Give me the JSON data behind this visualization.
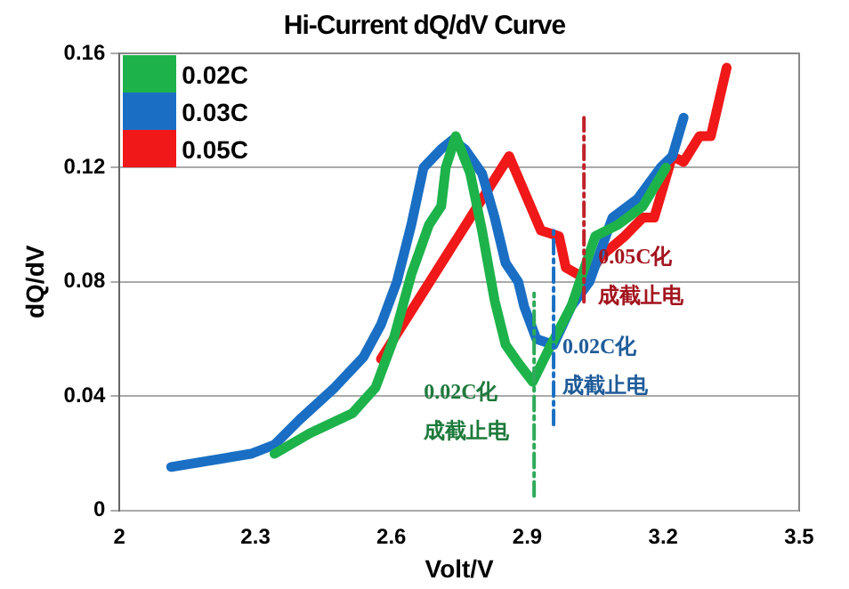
{
  "chart_data": {
    "type": "line",
    "title": "Hi-Current dQ/dV Curve",
    "xlabel": "Volt/V",
    "ylabel": "dQ/dV",
    "xlim": [
      2,
      3.5
    ],
    "xticks": [
      2,
      2.3,
      2.6,
      2.9,
      3.2,
      3.5
    ],
    "ylim": [
      0,
      0.16
    ],
    "yticks": [
      0,
      0.04,
      0.08,
      0.12,
      0.16
    ],
    "grid": "y",
    "legend": "top left",
    "marker": "none",
    "series": [
      {
        "name": "0.02C",
        "color": "#1db34a",
        "x": [
          2.342,
          2.42,
          2.514,
          2.565,
          2.605,
          2.644,
          2.683,
          2.71,
          2.72,
          2.742,
          2.774,
          2.8,
          2.828,
          2.852,
          2.88,
          2.912,
          2.946,
          2.997,
          3.05,
          3.1,
          3.155,
          3.206
        ],
        "values": [
          0.0198,
          0.027,
          0.034,
          0.043,
          0.06,
          0.0826,
          0.1,
          0.1065,
          0.12,
          0.131,
          0.118,
          0.098,
          0.0734,
          0.058,
          0.0516,
          0.045,
          0.056,
          0.0714,
          0.096,
          0.1,
          0.1065,
          0.12
        ]
      },
      {
        "name": "0.03C",
        "color": "#1a6fc4",
        "x": [
          2.114,
          2.29,
          2.342,
          2.397,
          2.475,
          2.538,
          2.577,
          2.612,
          2.644,
          2.671,
          2.71,
          2.735,
          2.762,
          2.8,
          2.828,
          2.852,
          2.88,
          2.893,
          2.92,
          2.958,
          2.997,
          3.037,
          3.088,
          3.143,
          3.194,
          3.22,
          3.245
        ],
        "values": [
          0.0152,
          0.0198,
          0.023,
          0.0317,
          0.043,
          0.0536,
          0.065,
          0.08,
          0.1,
          0.12,
          0.1265,
          0.1297,
          0.1265,
          0.118,
          0.1025,
          0.0866,
          0.08,
          0.0714,
          0.06,
          0.058,
          0.0714,
          0.08,
          0.1025,
          0.109,
          0.12,
          0.124,
          0.1375
        ]
      },
      {
        "name": "0.05C",
        "color": "#f01818",
        "x": [
          2.577,
          2.86,
          2.93,
          2.97,
          2.985,
          3.03,
          3.063,
          3.115,
          3.155,
          3.18,
          3.22,
          3.245,
          3.28,
          3.305,
          3.34
        ],
        "values": [
          0.053,
          0.124,
          0.098,
          0.096,
          0.085,
          0.081,
          0.089,
          0.096,
          0.1025,
          0.1025,
          0.124,
          0.122,
          0.131,
          0.131,
          0.155
        ]
      },
      {
        "color": "#2eaa5a",
        "line_style": "dashed",
        "x": [
          2.915,
          2.915
        ],
        "values": [
          0.005,
          0.076
        ]
      },
      {
        "color": "#1a6fc4",
        "line_style": "dashed",
        "x": [
          2.958,
          2.958
        ],
        "values": [
          0.03,
          0.098
        ]
      },
      {
        "color": "#c0222a",
        "line_style": "dashed",
        "x": [
          3.025,
          3.025
        ],
        "values": [
          0.073,
          0.1375
        ]
      }
    ],
    "annotations": [
      "0.02C化",
      "成截止电",
      "0.02C化",
      "成截止电",
      "0.05C化",
      "成截止电"
    ]
  }
}
